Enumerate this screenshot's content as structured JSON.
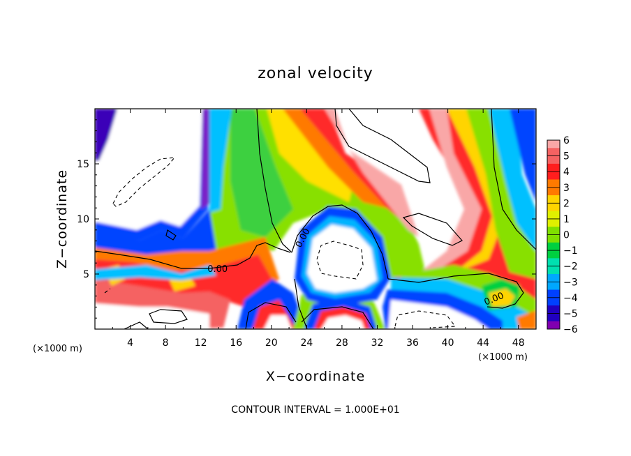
{
  "chart_data": {
    "type": "heatmap",
    "title": "zonal velocity",
    "xlabel": "X−coordinate",
    "ylabel": "Z−coordinate",
    "x_unit": "(×1000 m)",
    "x_range": [
      0,
      50
    ],
    "y_range": [
      0,
      20
    ],
    "x_ticks": [
      "4",
      "8",
      "12",
      "16",
      "20",
      "24",
      "28",
      "32",
      "36",
      "40",
      "44",
      "48"
    ],
    "x_tick_values": [
      4,
      8,
      12,
      16,
      20,
      24,
      28,
      32,
      36,
      40,
      44,
      48
    ],
    "y_ticks": [
      "5",
      "10",
      "15"
    ],
    "y_tick_values": [
      5,
      10,
      15
    ],
    "colorbar": {
      "min": -6,
      "max": 6,
      "labels": [
        "6",
        "5",
        "4",
        "3",
        "2",
        "1",
        "0",
        "−1",
        "−2",
        "−3",
        "−4",
        "−5",
        "−6"
      ],
      "values": [
        6,
        5,
        4,
        3,
        2,
        1,
        0,
        -1,
        -2,
        -3,
        -4,
        -5,
        -6
      ],
      "colors": [
        "#f9a7a7",
        "#f56262",
        "#ff1e1e",
        "#ff7a00",
        "#ffd400",
        "#e0f000",
        "#7fe000",
        "#00d040",
        "#00e0b0",
        "#00a8ff",
        "#0040ff",
        "#2000c0",
        "#8000b0"
      ]
    },
    "contour_labels": [
      {
        "text": "0.00",
        "x": 13.9,
        "y": 5.5
      },
      {
        "text": "0.00",
        "x": 23.5,
        "y": 8.3
      },
      {
        "text": "0.00",
        "x": 45.2,
        "y": 2.8
      }
    ],
    "footer": "CONTOUR INTERVAL = 1.000E+01"
  }
}
